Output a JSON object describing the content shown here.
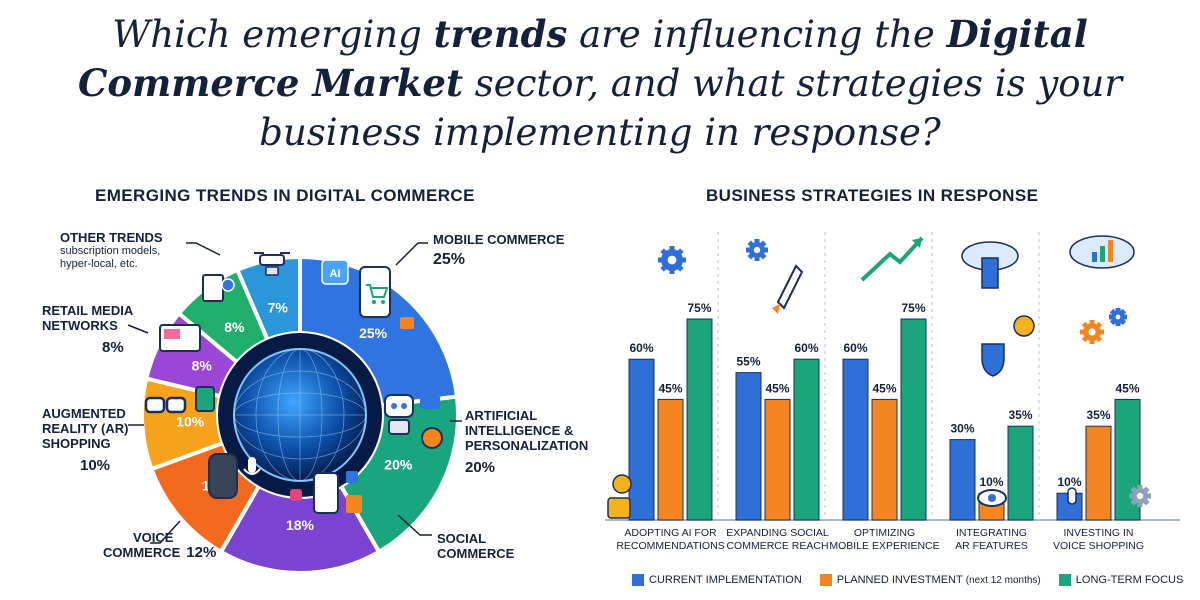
{
  "headline": {
    "part1": "Which emerging ",
    "bold1": "trends",
    "part2": " are influencing the ",
    "bold2": "Digital Commerce Market",
    "part3": " sector, and what strategies is your business implementing in response?"
  },
  "icons": {
    "drone": "drone-icon",
    "ai": "ai-chip-icon",
    "phone_cart": "phone-cart-icon",
    "robot": "robot-icon",
    "social": "social-phone-icon",
    "speaker": "smart-speaker-icon",
    "glasses": "ar-glasses-icon",
    "ads": "ads-screen-icon",
    "document": "document-icon",
    "globe": "globe-icon"
  },
  "chart_data": [
    {
      "type": "pie",
      "title": "EMERGING TRENDS IN DIGITAL COMMERCE",
      "slices": [
        {
          "label": "MOBILE COMMERCE",
          "value": 25,
          "color": "#2f74e0",
          "slice_label": "25%",
          "callout_pct": "25%"
        },
        {
          "label": "ARTIFICIAL INTELLIGENCE & PERSONALIZATION",
          "value": 20,
          "color": "#19a67f",
          "slice_label": "20%",
          "callout_pct": "20%"
        },
        {
          "label": "SOCIAL COMMERCE",
          "value": 18,
          "color": "#7a43d1",
          "slice_label": "18%",
          "callout_pct": ""
        },
        {
          "label": "VOICE COMMERCE",
          "value": 12,
          "color": "#f36a1e",
          "slice_label": "12%",
          "callout_pct": "12%"
        },
        {
          "label": "AUGMENTED REALITY (AR) SHOPPING",
          "value": 10,
          "color": "#f6a21b",
          "slice_label": "10%",
          "callout_pct": "10%"
        },
        {
          "label": "RETAIL MEDIA NETWORKS",
          "value": 8,
          "color": "#9b46d6",
          "slice_label": "8%",
          "callout_pct": "8%"
        },
        {
          "label": "OTHER TRENDS",
          "value": 8,
          "color": "#21ad6a",
          "slice_label": "8%",
          "callout_pct": ""
        },
        {
          "label": "",
          "value": 7,
          "color": "#2a97db",
          "slice_label": "7%",
          "callout_pct": ""
        }
      ],
      "callouts": {
        "mobile": {
          "label": "MOBILE COMMERCE",
          "pct": "25%"
        },
        "ai": {
          "line1": "ARTIFICIAL",
          "line2": "INTELLIGENCE &",
          "line3": "PERSONALIZATION",
          "pct": "20%"
        },
        "social": {
          "line1": "SOCIAL",
          "line2": "COMMERCE"
        },
        "voice": {
          "line1": "VOICE",
          "line2": "COMMERCE",
          "pct": "12%"
        },
        "ar": {
          "line1": "AUGMENTED",
          "line2": "REALITY (AR)",
          "line3": "SHOPPING",
          "pct": "10%"
        },
        "retail": {
          "line1": "RETAIL MEDIA",
          "line2": "NETWORKS",
          "pct": "8%"
        },
        "other": {
          "label": "OTHER TRENDS",
          "sub1": "subscription models,",
          "sub2": "hyper-local, etc."
        }
      }
    },
    {
      "type": "bar",
      "title": "BUSINESS STRATEGIES IN RESPONSE",
      "categories": [
        [
          "ADOPTING AI FOR",
          "RECOMMENDATIONS"
        ],
        [
          "EXPANDING SOCIAL",
          "COMMERCE REACH"
        ],
        [
          "OPTIMIZING",
          "MOBILE EXPERIENCE"
        ],
        [
          "INTEGRATING",
          "AR FEATURES"
        ],
        [
          "INVESTING IN",
          "VOICE SHOPPING"
        ]
      ],
      "series": [
        {
          "name": "CURRENT IMPLEMENTATION",
          "color": "#2f6fd8",
          "values": [
            60,
            55,
            60,
            30,
            10
          ]
        },
        {
          "name": "PLANNED INVESTMENT",
          "color": "#f5851f",
          "values": [
            45,
            45,
            45,
            10,
            35
          ]
        },
        {
          "name": "LONG-TERM FOCUS",
          "color": "#1aa67a",
          "values": [
            75,
            60,
            75,
            35,
            45
          ]
        }
      ],
      "ylim": [
        0,
        100
      ],
      "legend": {
        "current": "CURRENT IMPLEMENTATION",
        "planned": "PLANNED INVESTMENT",
        "planned_note": "(next 12 months)",
        "longterm": "LONG-TERM FOCUS"
      }
    }
  ]
}
